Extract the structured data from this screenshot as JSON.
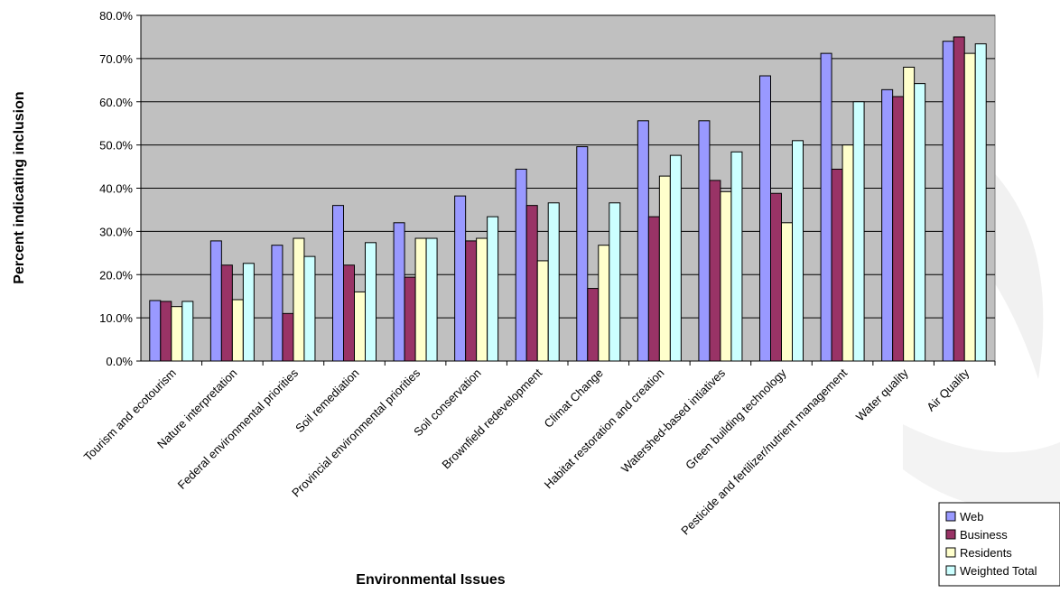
{
  "chart_data": {
    "type": "bar",
    "title": "",
    "xlabel": "Environmental Issues",
    "ylabel": "Percent indicating inclusion",
    "ylim": [
      0,
      0.8
    ],
    "ytick_step": 0.1,
    "ytick_labels": [
      "0.0%",
      "10.0%",
      "20.0%",
      "30.0%",
      "40.0%",
      "50.0%",
      "60.0%",
      "70.0%",
      "80.0%"
    ],
    "grid": "horizontal",
    "legend_position": "bottom-right",
    "plot_background": "#c0c0c0",
    "categories": [
      "Tourism and ecotourism",
      "Nature interpretation",
      "Federal environmental priorities",
      "Soil remediation",
      "Provincial environmental priorities",
      "Soil conservation",
      "Brownfield redevelopment",
      "Climat Change",
      "Habitat restoration and creation",
      "Watershed-based intiatives",
      "Green building technology",
      "Pesticide and fertilizer/nutrient management",
      "Water quality",
      "Air Quality"
    ],
    "series": [
      {
        "name": "Web",
        "color": "#9999ff",
        "values": [
          0.14,
          0.278,
          0.268,
          0.36,
          0.32,
          0.382,
          0.444,
          0.496,
          0.556,
          0.556,
          0.66,
          0.712,
          0.628,
          0.74
        ]
      },
      {
        "name": "Business",
        "color": "#993366",
        "values": [
          0.138,
          0.222,
          0.11,
          0.222,
          0.194,
          0.278,
          0.36,
          0.168,
          0.334,
          0.418,
          0.388,
          0.444,
          0.612,
          0.75
        ]
      },
      {
        "name": "Residents",
        "color": "#ffffcc",
        "values": [
          0.126,
          0.142,
          0.284,
          0.16,
          0.284,
          0.284,
          0.232,
          0.268,
          0.428,
          0.392,
          0.32,
          0.5,
          0.68,
          0.712
        ]
      },
      {
        "name": "Weighted Total",
        "color": "#ccffff",
        "values": [
          0.138,
          0.226,
          0.242,
          0.274,
          0.284,
          0.334,
          0.366,
          0.366,
          0.476,
          0.484,
          0.51,
          0.6,
          0.642,
          0.734
        ]
      }
    ]
  }
}
